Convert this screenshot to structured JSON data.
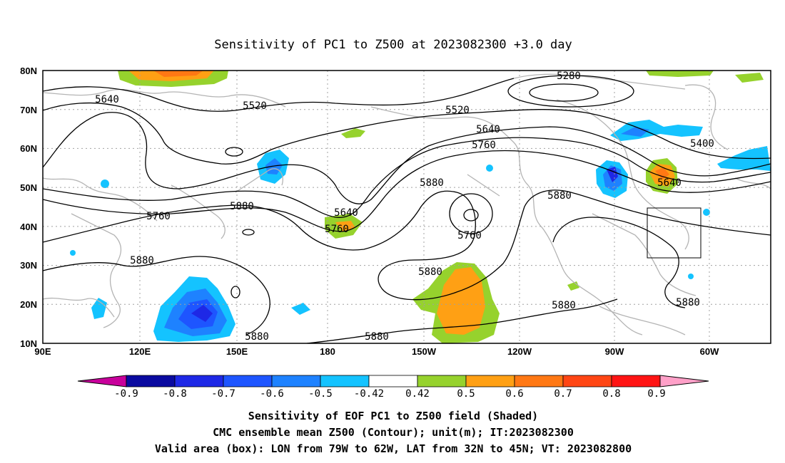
{
  "title": "Sensitivity of PC1 to Z500 at 2023082300 +3.0 day",
  "lat_labels": [
    "80N",
    "70N",
    "60N",
    "50N",
    "40N",
    "30N",
    "20N",
    "10N"
  ],
  "lon_labels": [
    "90E",
    "120E",
    "150E",
    "180",
    "150W",
    "120W",
    "90W",
    "60W"
  ],
  "contour_labels": [
    "5640",
    "5520",
    "5520",
    "5280",
    "5640",
    "5760",
    "5400",
    "5880",
    "5880",
    "5640",
    "5760",
    "5880",
    "5760",
    "5880",
    "5640",
    "5880",
    "5880",
    "5880",
    "5880",
    "5880"
  ],
  "colorbar": {
    "labels": [
      "-0.9",
      "-0.8",
      "-0.7",
      "-0.6",
      "-0.5",
      "-0.42",
      "0.42",
      "0.5",
      "0.6",
      "0.7",
      "0.8",
      "0.9"
    ],
    "colors": [
      "#c8009b",
      "#0a0aa0",
      "#1e28e6",
      "#1e55ff",
      "#1e82ff",
      "#14c3ff",
      "#ffffff",
      "#96d22d",
      "#ffa014",
      "#ff7814",
      "#ff4614",
      "#ff1414",
      "#ffa0c8"
    ]
  },
  "caption": {
    "line1": "Sensitivity of EOF PC1 to Z500 field (Shaded)",
    "line2": "CMC ensemble mean Z500 (Contour); unit(m); IT:2023082300",
    "line3": "Valid area (box): LON from 79W to 62W, LAT from 32N to 45N; VT: 2023082800"
  }
}
